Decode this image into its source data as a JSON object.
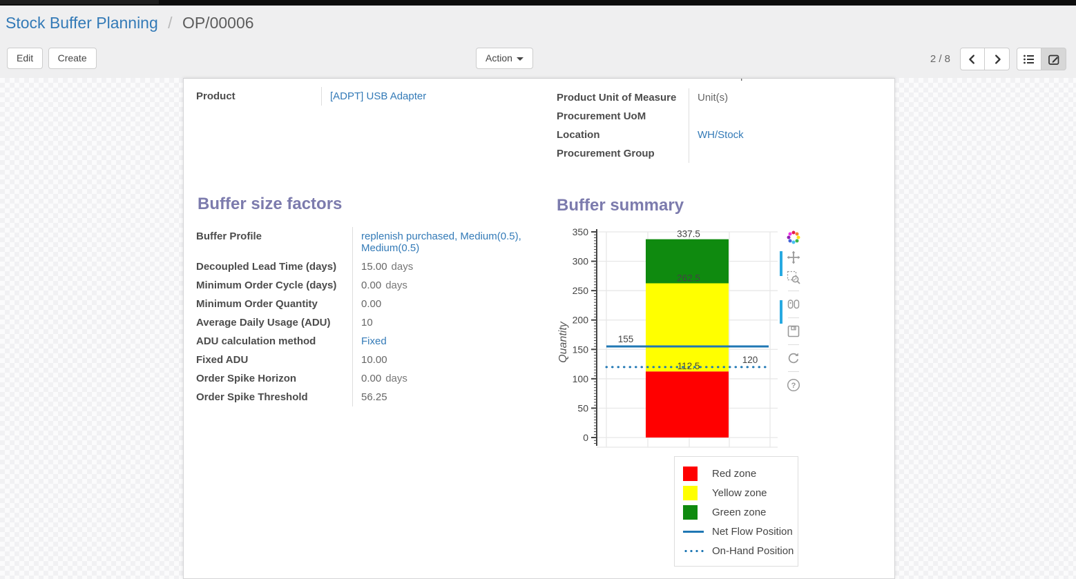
{
  "breadcrumb": {
    "parent": "Stock Buffer Planning",
    "separator": "/",
    "current": "OP/00006"
  },
  "control_panel": {
    "edit_label": "Edit",
    "create_label": "Create",
    "action_label": "Action",
    "pager_value": "2 / 8"
  },
  "clipped_fragment": "p y",
  "sheet": {
    "main_left_fields": [
      {
        "label": "Product",
        "value": "[ADPT] USB Adapter",
        "link": true
      }
    ],
    "main_right_fields": [
      {
        "label": "Product Unit of Measure",
        "value": "Unit(s)",
        "link": false
      },
      {
        "label": "Procurement UoM",
        "value": "",
        "link": false
      },
      {
        "label": "Location",
        "value": "WH/Stock",
        "link": true
      },
      {
        "label": "Procurement Group",
        "value": "",
        "link": false
      }
    ],
    "factors_title": "Buffer size factors",
    "factors_fields": [
      {
        "label": "Buffer Profile",
        "value": "replenish purchased, Medium(0.5), Medium(0.5)",
        "link": true
      },
      {
        "label": "Decoupled Lead Time (days)",
        "value": "15.00",
        "unit": "days"
      },
      {
        "label": "Minimum Order Cycle (days)",
        "value": "0.00",
        "unit": "days"
      },
      {
        "label": "Minimum Order Quantity",
        "value": "0.00"
      },
      {
        "label": "Average Daily Usage (ADU)",
        "value": "10"
      },
      {
        "label": "ADU calculation method",
        "value": "Fixed",
        "link": true
      },
      {
        "label": "Fixed ADU",
        "value": "10.00"
      },
      {
        "label": "Order Spike Horizon",
        "value": "0.00",
        "unit": "days"
      },
      {
        "label": "Order Spike Threshold",
        "value": "56.25"
      }
    ],
    "summary_title": "Buffer summary"
  },
  "chart_data": {
    "type": "bar",
    "title": "Buffer summary",
    "ylabel": "Quantity",
    "ylim": [
      0,
      350
    ],
    "ytick_step": 50,
    "minor_tick_step": 5,
    "grid": true,
    "legend_position": "below-right",
    "zones": [
      {
        "name": "Red zone",
        "from": 0,
        "to": 112.5,
        "color": "#ff0000"
      },
      {
        "name": "Yellow zone",
        "from": 112.5,
        "to": 262.5,
        "color": "#ffff00"
      },
      {
        "name": "Green zone",
        "from": 262.5,
        "to": 337.5,
        "color": "#0f8a0f"
      }
    ],
    "lines": [
      {
        "name": "Net Flow Position",
        "value": 155,
        "style": "solid",
        "color": "#1f77b4"
      },
      {
        "name": "On-Hand Position",
        "value": 120,
        "style": "dotted",
        "color": "#1f77b4"
      }
    ],
    "annotations": [
      {
        "text": "337.5",
        "value": 337.5,
        "pos": "bar"
      },
      {
        "text": "262.5",
        "value": 262.5,
        "pos": "bar"
      },
      {
        "text": "155",
        "value": 155,
        "pos": "left"
      },
      {
        "text": "112.5",
        "value": 112.5,
        "pos": "bar"
      },
      {
        "text": "120",
        "value": 120,
        "pos": "right"
      }
    ]
  },
  "colors": {
    "link": "#337ab7",
    "heading": "#7c7bad",
    "net_flow": "#1f77b4",
    "red_zone": "#ff0000",
    "yellow_zone": "#ffff00",
    "green_zone": "#0f8a0f",
    "modebar_active": "#27a9e1"
  }
}
